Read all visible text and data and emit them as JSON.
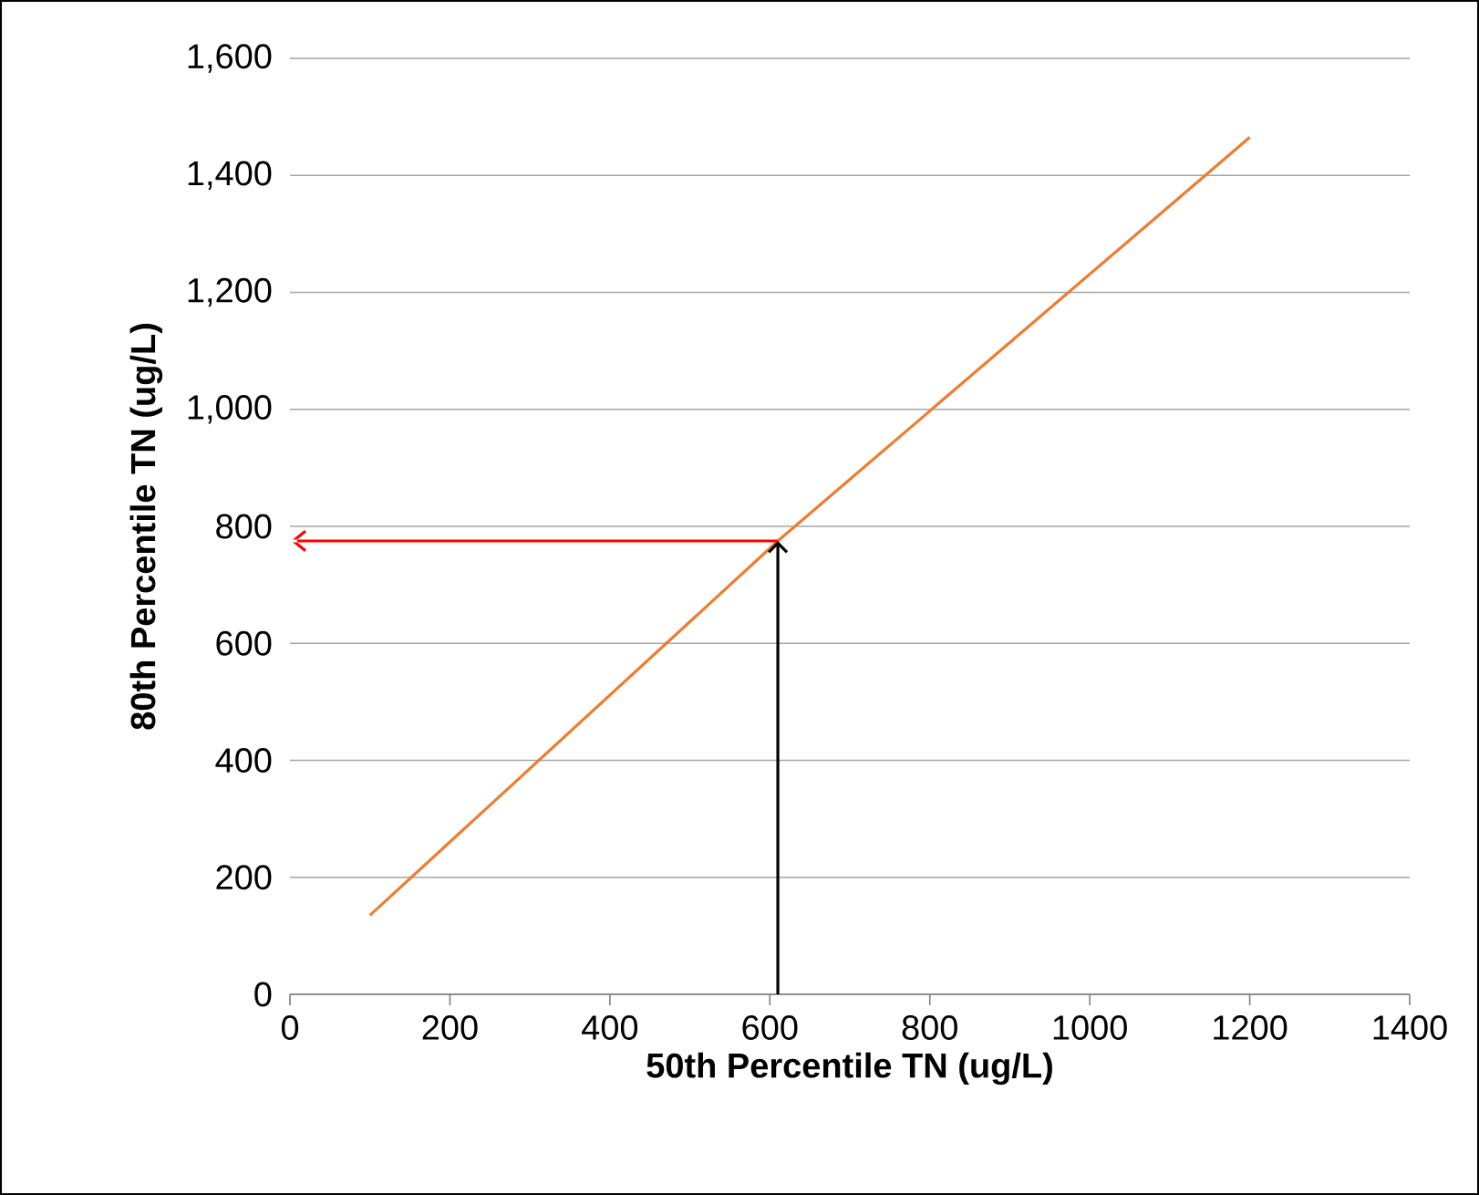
{
  "chart_data": {
    "type": "line",
    "xlabel": "50th Percentile TN (ug/L)",
    "ylabel": "80th Percentile TN (ug/L)",
    "series": [
      {
        "color": "#ed7d31",
        "x": [
          100,
          610,
          1200
        ],
        "values": [
          135,
          775,
          1465
        ]
      }
    ],
    "xlim": [
      0,
      1400
    ],
    "ylim": [
      0,
      1600
    ],
    "xticks": [
      0,
      200,
      400,
      600,
      800,
      1000,
      1200,
      1400
    ],
    "yticks": [
      0,
      200,
      400,
      600,
      800,
      {
        "value": 1000,
        "label": "1,000"
      },
      {
        "value": 1200,
        "label": "1,200"
      },
      {
        "value": 1400,
        "label": "1,400"
      },
      {
        "value": 1600,
        "label": "1,600"
      }
    ],
    "grid": "y",
    "marker": "none",
    "line_style": "solid"
  }
}
